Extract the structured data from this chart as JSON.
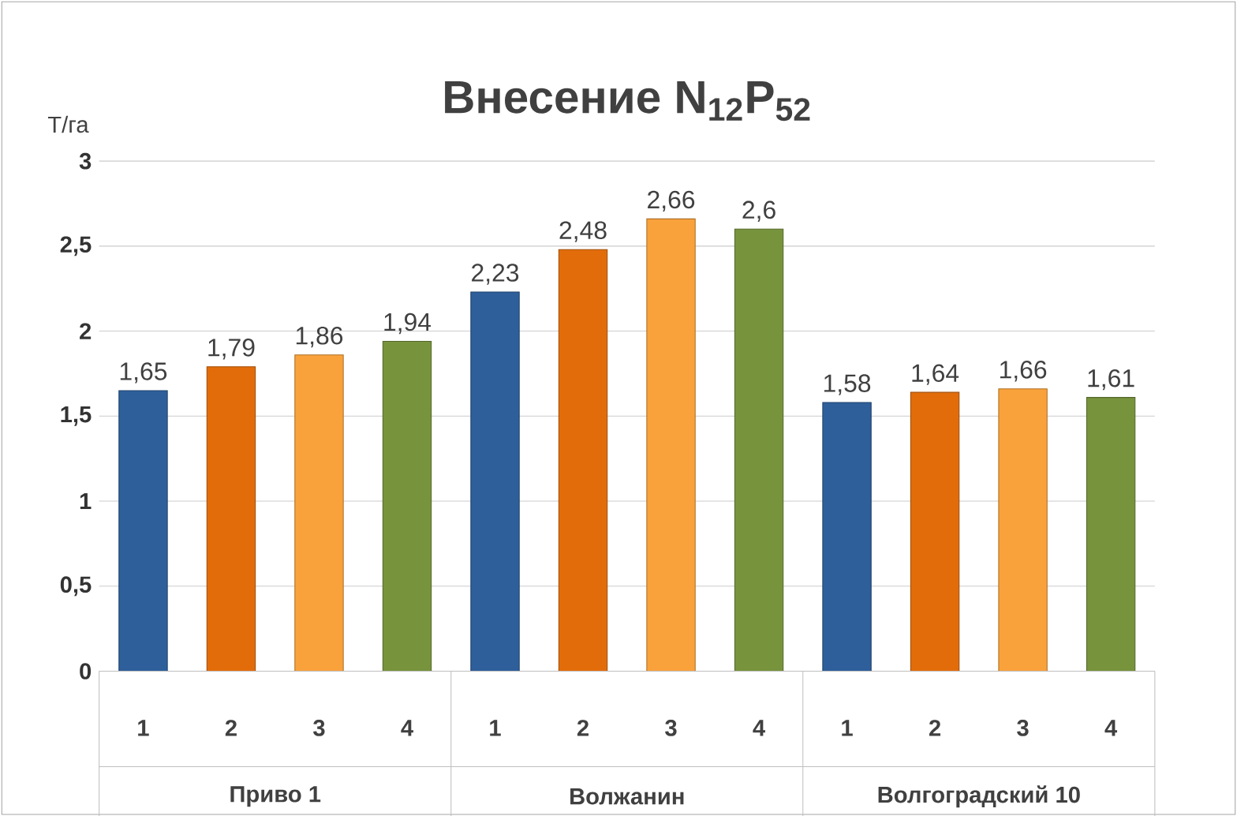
{
  "chart_data": {
    "type": "bar",
    "title": "Внесение N$_{12}$P$_{52}$",
    "ylabel": "Т/га",
    "categories": [
      "1",
      "2",
      "3",
      "4",
      "1",
      "2",
      "3",
      "4",
      "1",
      "2",
      "3",
      "4"
    ],
    "values": [
      1.65,
      1.79,
      1.86,
      1.94,
      2.23,
      2.48,
      2.66,
      2.6,
      1.58,
      1.64,
      1.66,
      1.61
    ],
    "value_labels": [
      "1,65",
      "1,79",
      "1,86",
      "1,94",
      "2,23",
      "2,48",
      "2,66",
      "2,6",
      "1,58",
      "1,64",
      "1,66",
      "1,61"
    ],
    "colors": [
      "#2e5f9a",
      "#e36c0a",
      "#f9a23b",
      "#77933c",
      "#2e5f9a",
      "#e36c0a",
      "#f9a23b",
      "#77933c",
      "#2e5f9a",
      "#e36c0a",
      "#f9a23b",
      "#77933c"
    ],
    "ylim": [
      0,
      3
    ],
    "yticks": [
      0,
      {
        "value": 0.5,
        "label": "0,5"
      },
      1,
      {
        "value": 1.5,
        "label": "1,5"
      },
      2,
      {
        "value": 2.5,
        "label": "2,5"
      },
      3
    ],
    "grid": "y",
    "annotations": [
      "Приво 1",
      "Волжанин",
      "Волгоградский 10"
    ]
  }
}
